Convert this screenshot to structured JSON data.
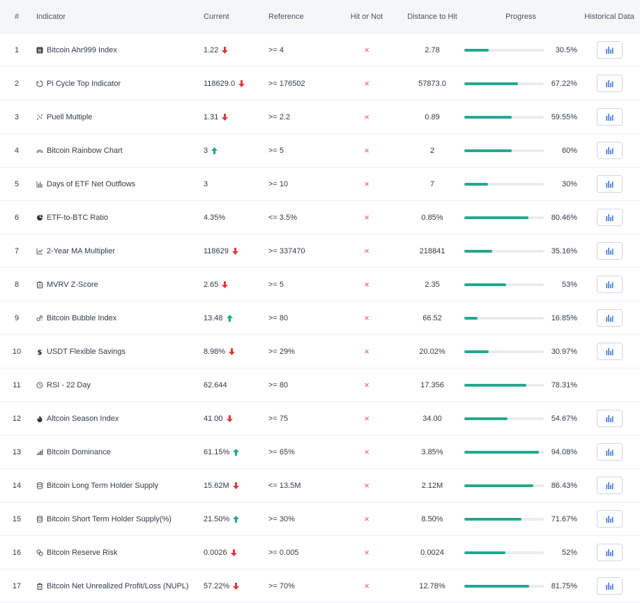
{
  "columns": {
    "num": "#",
    "indicator": "Indicator",
    "current": "Current",
    "reference": "Reference",
    "hit": "Hit or Not",
    "distance": "Distance to Hit",
    "progress": "Progress",
    "historical": "Historical Data"
  },
  "colors": {
    "progress": "#24a88f",
    "down": "#e0393e",
    "up": "#23a58a",
    "miss": "#e45a65",
    "chart_icon": "#3b73d9"
  },
  "rows": [
    {
      "num": "1",
      "icon": "bitcoin-icon",
      "name": "Bitcoin Ahr999 Index",
      "current": "1.22",
      "trend": "down",
      "reference": ">= 4",
      "hit": "×",
      "distance": "2.78",
      "progress": 0.305,
      "progress_label": "30.5%",
      "has_history": true
    },
    {
      "num": "2",
      "icon": "pi-cycle-icon",
      "name": "Pi Cycle Top Indicator",
      "current": "118629.0",
      "trend": "down",
      "reference": ">= 176502",
      "hit": "×",
      "distance": "57873.0",
      "progress": 0.6722,
      "progress_label": "67.22%",
      "has_history": true
    },
    {
      "num": "3",
      "icon": "scatter-icon",
      "name": "Puell Multiple",
      "current": "1.31",
      "trend": "down",
      "reference": ">= 2.2",
      "hit": "×",
      "distance": "0.89",
      "progress": 0.5955,
      "progress_label": "59.55%",
      "has_history": true
    },
    {
      "num": "4",
      "icon": "rainbow-icon",
      "name": "Bitcoin Rainbow Chart",
      "current": "3",
      "trend": "up",
      "reference": ">= 5",
      "hit": "×",
      "distance": "2",
      "progress": 0.6,
      "progress_label": "60%",
      "has_history": true
    },
    {
      "num": "5",
      "icon": "bar-chart-icon",
      "name": "Days of ETF Net Outflows",
      "current": "3",
      "trend": "none",
      "reference": ">= 10",
      "hit": "×",
      "distance": "7",
      "progress": 0.3,
      "progress_label": "30%",
      "has_history": true
    },
    {
      "num": "6",
      "icon": "pie-chart-icon",
      "name": "ETF-to-BTC Ratio",
      "current": "4.35%",
      "trend": "none",
      "reference": "<= 3.5%",
      "hit": "×",
      "distance": "0.85%",
      "progress": 0.8046,
      "progress_label": "80.46%",
      "has_history": true
    },
    {
      "num": "7",
      "icon": "line-chart-icon",
      "name": "2-Year MA Multiplier",
      "current": "118629",
      "trend": "down",
      "reference": ">= 337470",
      "hit": "×",
      "distance": "218841",
      "progress": 0.3516,
      "progress_label": "35.16%",
      "has_history": true
    },
    {
      "num": "8",
      "icon": "clipboard-icon",
      "name": "MVRV Z-Score",
      "current": "2.65",
      "trend": "down",
      "reference": ">= 5",
      "hit": "×",
      "distance": "2.35",
      "progress": 0.53,
      "progress_label": "53%",
      "has_history": true
    },
    {
      "num": "9",
      "icon": "bubble-icon",
      "name": "Bitcoin Bubble Index",
      "current": "13.48",
      "trend": "up",
      "reference": ">= 80",
      "hit": "×",
      "distance": "66.52",
      "progress": 0.1685,
      "progress_label": "16.85%",
      "has_history": true
    },
    {
      "num": "10",
      "icon": "dollar-icon",
      "name": "USDT Flexible Savings",
      "current": "8.98%",
      "trend": "down",
      "reference": ">= 29%",
      "hit": "×",
      "distance": "20.02%",
      "progress": 0.3097,
      "progress_label": "30.97%",
      "has_history": true
    },
    {
      "num": "11",
      "icon": "clock-icon",
      "name": "RSI - 22 Day",
      "current": "62.644",
      "trend": "none",
      "reference": ">= 80",
      "hit": "×",
      "distance": "17.356",
      "progress": 0.7831,
      "progress_label": "78.31%",
      "has_history": false
    },
    {
      "num": "12",
      "icon": "flame-icon",
      "name": "Altcoin Season Index",
      "current": "41.00",
      "trend": "down",
      "reference": ">= 75",
      "hit": "×",
      "distance": "34.00",
      "progress": 0.5467,
      "progress_label": "54.67%",
      "has_history": true
    },
    {
      "num": "13",
      "icon": "signal-icon",
      "name": "Bitcoin Dominance",
      "current": "61.15%",
      "trend": "up",
      "reference": ">= 65%",
      "hit": "×",
      "distance": "3.85%",
      "progress": 0.9408,
      "progress_label": "94.08%",
      "has_history": true
    },
    {
      "num": "14",
      "icon": "database-icon",
      "name": "Bitcoin Long Term Holder Supply",
      "current": "15.62M",
      "trend": "down",
      "reference": "<= 13.5M",
      "hit": "×",
      "distance": "2.12M",
      "progress": 0.8643,
      "progress_label": "86.43%",
      "has_history": true
    },
    {
      "num": "15",
      "icon": "database-icon",
      "name": "Bitcoin Short Term Holder Supply(%)",
      "current": "21.50%",
      "trend": "up",
      "reference": ">= 30%",
      "hit": "×",
      "distance": "8.50%",
      "progress": 0.7167,
      "progress_label": "71.67%",
      "has_history": true
    },
    {
      "num": "16",
      "icon": "reserve-icon",
      "name": "Bitcoin Reserve Risk",
      "current": "0.0026",
      "trend": "down",
      "reference": ">= 0.005",
      "hit": "×",
      "distance": "0.0024",
      "progress": 0.52,
      "progress_label": "52%",
      "has_history": true
    },
    {
      "num": "17",
      "icon": "trash-icon",
      "name": "Bitcoin Net Unrealized Profit/Loss (NUPL)",
      "current": "57.22%",
      "trend": "down",
      "reference": ">= 70%",
      "hit": "×",
      "distance": "12.78%",
      "progress": 0.8175,
      "progress_label": "81.75%",
      "has_history": true
    }
  ]
}
